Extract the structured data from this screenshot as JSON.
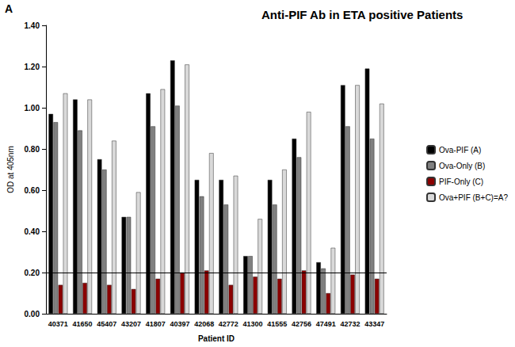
{
  "chart_data": {
    "type": "bar",
    "panel_label": "A",
    "title": "Anti-PIF Ab in ETA positive Patients",
    "x_label": "Patient ID",
    "y_label": "OD at 405nm",
    "categories": [
      "40371",
      "41650",
      "45407",
      "43207",
      "41807",
      "40397",
      "42068",
      "42772",
      "41300",
      "41555",
      "42756",
      "47491",
      "42732",
      "43347"
    ],
    "series": [
      {
        "name": "Ova-PIF (A)",
        "color": "#000000",
        "values": [
          0.97,
          1.04,
          0.75,
          0.47,
          1.07,
          1.23,
          0.65,
          0.65,
          0.28,
          0.65,
          0.85,
          0.25,
          1.11,
          1.19
        ]
      },
      {
        "name": "Ova-Only (B)",
        "color": "#808080",
        "values": [
          0.93,
          0.89,
          0.7,
          0.47,
          0.91,
          1.01,
          0.57,
          0.53,
          0.28,
          0.53,
          0.76,
          0.22,
          0.91,
          0.85
        ]
      },
      {
        "name": "PIF-Only (C)",
        "color": "#8b0000",
        "values": [
          0.14,
          0.15,
          0.14,
          0.12,
          0.17,
          0.2,
          0.21,
          0.14,
          0.18,
          0.17,
          0.21,
          0.1,
          0.19,
          0.17
        ]
      },
      {
        "name": "Ova+PIF (B+C)=A?",
        "color": "#d9d9d9",
        "values": [
          1.07,
          1.04,
          0.84,
          0.59,
          1.09,
          1.21,
          0.78,
          0.67,
          0.46,
          0.7,
          0.98,
          0.32,
          1.11,
          1.02
        ]
      }
    ],
    "threshold": 0.2,
    "ylim": [
      0,
      1.4
    ],
    "yticks": [
      {
        "value": 0,
        "label": "0.00"
      },
      {
        "value": 0.2,
        "label": "0.20"
      },
      {
        "value": 0.4,
        "label": "0.40"
      },
      {
        "value": 0.6,
        "label": "0.60"
      },
      {
        "value": 0.8,
        "label": "0.80"
      },
      {
        "value": 1.0,
        "label": "1.00"
      },
      {
        "value": 1.2,
        "label": "1.20"
      },
      {
        "value": 1.4,
        "label": "1.40"
      }
    ],
    "grid": false,
    "legend": "right"
  }
}
